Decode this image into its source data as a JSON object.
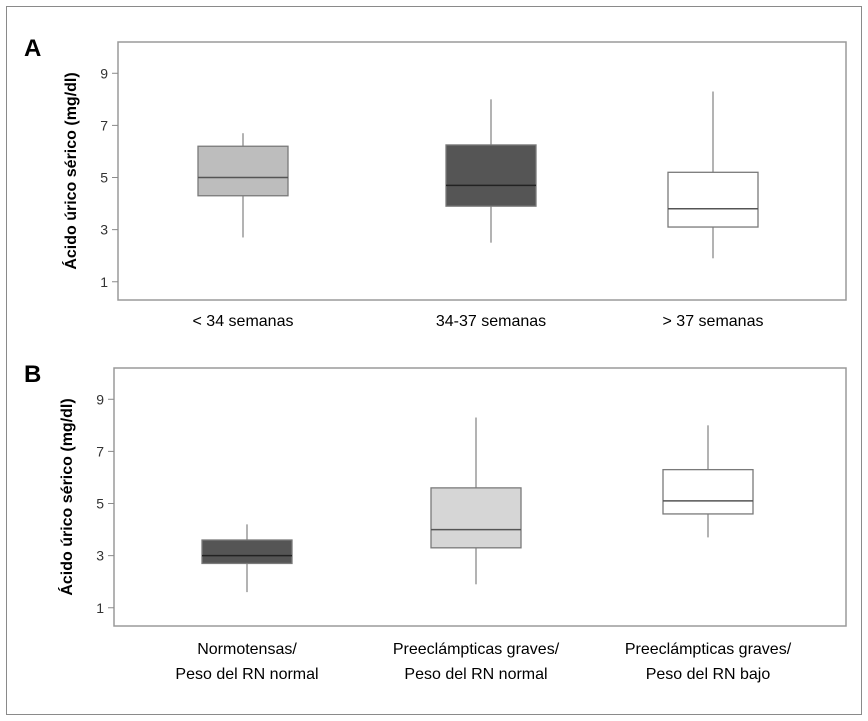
{
  "chart_data": [
    {
      "type": "box",
      "panel_label": "A",
      "ylabel": "Ácido úrico sérico (mg/dl)",
      "yticks": [
        1,
        3,
        5,
        7,
        9
      ],
      "ylim": [
        0.3,
        10.2
      ],
      "categories": [
        {
          "label": [
            "< 34 semanas"
          ],
          "min": 2.7,
          "q1": 4.3,
          "median": 5.0,
          "q3": 6.2,
          "max": 6.7,
          "fill": "#bdbdbd"
        },
        {
          "label": [
            "34-37 semanas"
          ],
          "min": 2.5,
          "q1": 3.9,
          "median": 4.7,
          "q3": 6.25,
          "max": 8.0,
          "fill": "#555555"
        },
        {
          "label": [
            "> 37 semanas"
          ],
          "min": 1.9,
          "q1": 3.1,
          "median": 3.8,
          "q3": 5.2,
          "max": 8.3,
          "fill": "#ffffff"
        }
      ]
    },
    {
      "type": "box",
      "panel_label": "B",
      "ylabel": "Ácido úrico sérico (mg/dl)",
      "yticks": [
        1,
        3,
        5,
        7,
        9
      ],
      "ylim": [
        0.3,
        10.2
      ],
      "categories": [
        {
          "label": [
            "Normotensas/",
            "Peso del RN normal"
          ],
          "min": 1.6,
          "q1": 2.7,
          "median": 3.0,
          "q3": 3.6,
          "max": 4.2,
          "fill": "#555555"
        },
        {
          "label": [
            "Preeclámpticas graves/",
            "Peso del RN normal"
          ],
          "min": 1.9,
          "q1": 3.3,
          "median": 4.0,
          "q3": 5.6,
          "max": 8.3,
          "fill": "#d6d6d6"
        },
        {
          "label": [
            "Preeclámpticas graves/",
            "Peso del RN bajo"
          ],
          "min": 3.7,
          "q1": 4.6,
          "median": 5.1,
          "q3": 6.3,
          "max": 8.0,
          "fill": "#ffffff"
        }
      ]
    }
  ]
}
